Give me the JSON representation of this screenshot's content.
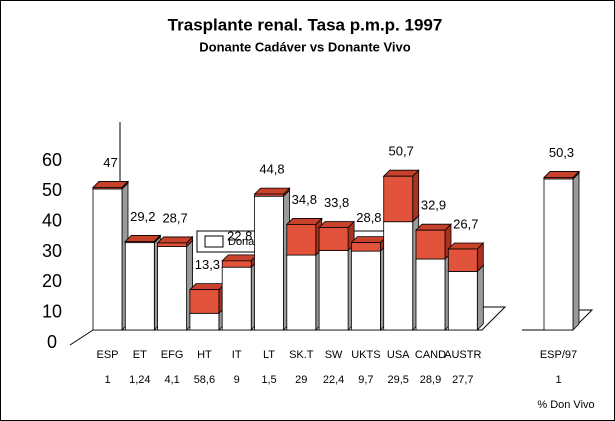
{
  "chart_data": {
    "type": "bar3d_stacked",
    "title": "Trasplante renal. Tasa p.m.p. 1997",
    "subtitle": "Donante Cadáver vs Donante Vivo",
    "categories": [
      "ESP",
      "ET",
      "EFG",
      "HT",
      "IT",
      "LT",
      "SK.T",
      "SW",
      "UKTS",
      "USA",
      "CAND",
      "AUSTR",
      "ESP/97"
    ],
    "series": [
      {
        "name": "Donante Cadáver",
        "color": "#ffffff",
        "values": [
          46.5,
          28.8,
          27.5,
          5.5,
          20.7,
          44.1,
          24.7,
          26.2,
          26.0,
          35.7,
          23.4,
          19.3,
          49.8
        ]
      },
      {
        "name": "Donante Vivo",
        "color": "#e2533c",
        "values": [
          0.5,
          0.4,
          1.2,
          7.8,
          2.1,
          0.7,
          10.1,
          7.6,
          2.8,
          15.0,
          9.5,
          7.4,
          0.5
        ]
      }
    ],
    "totals": [
      47,
      29.2,
      28.7,
      13.3,
      22.8,
      44.8,
      34.8,
      33.8,
      28.8,
      50.7,
      32.9,
      26.7,
      50.3
    ],
    "total_labels": [
      "47",
      "29,2",
      "28,7",
      "13,3",
      "22,8",
      "44,8",
      "34,8",
      "33,8",
      "28,8",
      "50,7",
      "32,9",
      "26,7",
      "50,3"
    ],
    "pct_don_vivo": {
      "label": "% Don Vivo",
      "values": [
        1,
        1.24,
        4.1,
        58.6,
        9,
        1.5,
        29,
        22.4,
        9.7,
        29.5,
        28.9,
        27.7,
        1
      ],
      "value_labels": [
        "1",
        "1,24",
        "4,1",
        "58,6",
        "9",
        "1,5",
        "29",
        "22,4",
        "9,7",
        "29,5",
        "28,9",
        "27,7",
        "1"
      ]
    },
    "ylim": [
      0,
      60
    ],
    "yticks": [
      0,
      10,
      20,
      30,
      40,
      50,
      60
    ],
    "legend": "top"
  }
}
